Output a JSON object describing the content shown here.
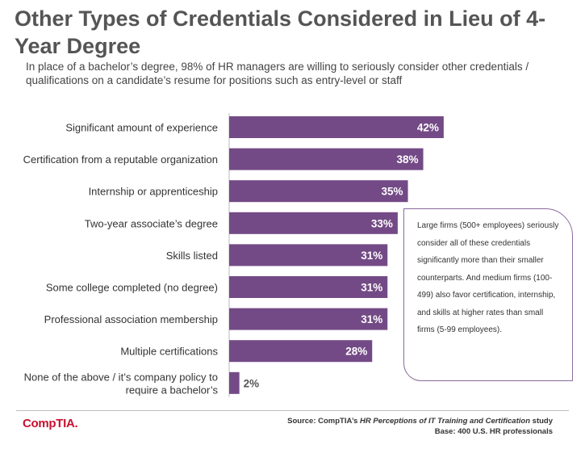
{
  "title": "Other Types of Credentials Considered in Lieu of 4-Year Degree",
  "subtitle": "In place of a bachelor’s degree, 98% of HR managers are willing to seriously consider other credentials / qualifications on a candidate’s resume for positions such as entry-level or staff",
  "colors": {
    "bar": "#734a86",
    "bar_label": "#ffffff",
    "small_label": "#555555",
    "logo": "#c8102e"
  },
  "chart_data": {
    "type": "bar",
    "orientation": "horizontal",
    "categories": [
      "Significant amount of experience",
      "Certification from a reputable organization",
      "Internship or apprenticeship",
      "Two-year associate’s degree",
      "Skills listed",
      "Some college completed (no degree)",
      "Professional association membership",
      "Multiple certifications",
      "None of the above / it’s company policy to require a bachelor’s"
    ],
    "values": [
      42,
      38,
      35,
      33,
      31,
      31,
      31,
      28,
      2
    ],
    "value_labels": [
      "42%",
      "38%",
      "35%",
      "33%",
      "31%",
      "31%",
      "31%",
      "28%",
      "2%"
    ],
    "unit": "%",
    "xlim": [
      0,
      100
    ],
    "grid": false,
    "legend": "none"
  },
  "callout": "Large firms (500+ employees) seriously consider all of these credentials significantly more than their smaller counterparts. And medium firms (100-499) also favor certification, internship, and skills at higher rates than small firms (5-99 employees).",
  "source": {
    "prefix": "Source: CompTIA’s ",
    "study_title": "HR Perceptions of IT Training and Certification",
    "suffix": " study",
    "base": "Base: 400 U.S. HR professionals"
  },
  "logo": "CompTIA."
}
